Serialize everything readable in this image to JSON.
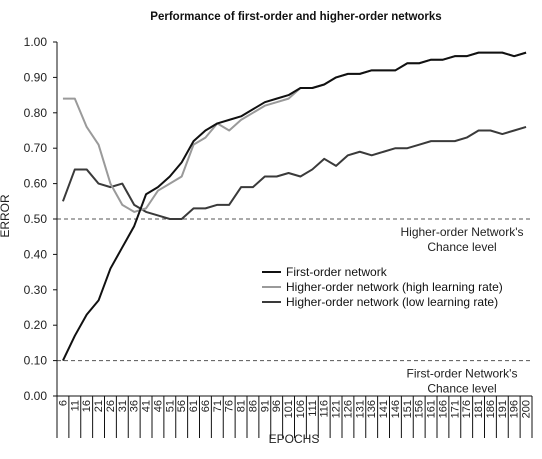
{
  "chart_data": {
    "type": "line",
    "title": "Performance of first-order and higher-order networks",
    "xlabel": "EPOCHS",
    "ylabel": "ERROR",
    "ylim": [
      0,
      1
    ],
    "yticks": [
      "0.00",
      "0.10",
      "0.20",
      "0.30",
      "0.40",
      "0.50",
      "0.60",
      "0.70",
      "0.80",
      "0.90",
      "1.00"
    ],
    "x": [
      6,
      11,
      16,
      21,
      26,
      31,
      36,
      41,
      46,
      51,
      56,
      61,
      66,
      71,
      76,
      81,
      86,
      91,
      96,
      101,
      106,
      111,
      116,
      121,
      126,
      131,
      136,
      141,
      146,
      151,
      156,
      161,
      166,
      171,
      176,
      181,
      186,
      191,
      196,
      200
    ],
    "series": [
      {
        "name": "First-order network",
        "color": "#111111",
        "values": [
          0.1,
          0.17,
          0.23,
          0.27,
          0.36,
          0.42,
          0.48,
          0.57,
          0.59,
          0.62,
          0.66,
          0.72,
          0.75,
          0.77,
          0.78,
          0.79,
          0.81,
          0.83,
          0.84,
          0.85,
          0.87,
          0.87,
          0.88,
          0.9,
          0.91,
          0.91,
          0.92,
          0.92,
          0.92,
          0.94,
          0.94,
          0.95,
          0.95,
          0.96,
          0.96,
          0.97,
          0.97,
          0.97,
          0.96,
          0.97
        ]
      },
      {
        "name": "Higher-order network (high learning rate)",
        "color": "#9a9a9a",
        "values": [
          0.84,
          0.84,
          0.76,
          0.71,
          0.6,
          0.54,
          0.52,
          0.53,
          0.58,
          0.6,
          0.62,
          0.71,
          0.73,
          0.77,
          0.75,
          0.78,
          0.8,
          0.82,
          0.83,
          0.84,
          0.87,
          0.87,
          0.88,
          0.9,
          0.91,
          0.91,
          0.92,
          0.92,
          0.92,
          0.94,
          0.94,
          0.95,
          0.95,
          0.96,
          0.96,
          0.97,
          0.97,
          0.97,
          0.96,
          0.97
        ]
      },
      {
        "name": "Higher-order network (low learning rate)",
        "color": "#3a3a3a",
        "values": [
          0.55,
          0.64,
          0.64,
          0.6,
          0.59,
          0.6,
          0.54,
          0.52,
          0.51,
          0.5,
          0.5,
          0.53,
          0.53,
          0.54,
          0.54,
          0.59,
          0.59,
          0.62,
          0.62,
          0.63,
          0.62,
          0.64,
          0.67,
          0.65,
          0.68,
          0.69,
          0.68,
          0.69,
          0.7,
          0.7,
          0.71,
          0.72,
          0.72,
          0.72,
          0.73,
          0.75,
          0.75,
          0.74,
          0.75,
          0.76
        ]
      }
    ],
    "reference_lines": [
      {
        "y": 0.5,
        "label_line1": "Higher-order Network's",
        "label_line2": "Chance level"
      },
      {
        "y": 0.1,
        "label_line1": "First-order Network's",
        "label_line2": "Chance level"
      }
    ],
    "legend_position": "center-right",
    "grid": false
  }
}
